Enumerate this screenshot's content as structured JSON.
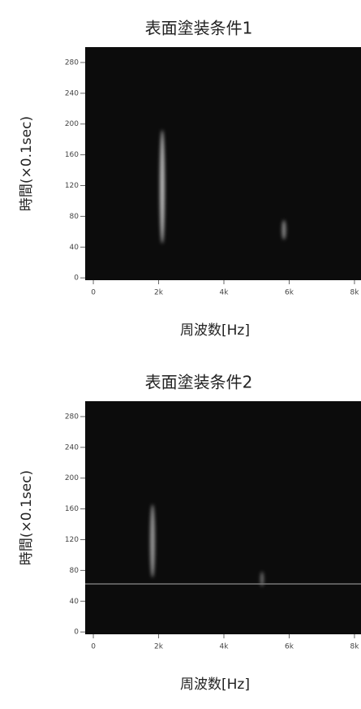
{
  "chart_data": [
    {
      "type": "spectrogram",
      "title": "表面塗装条件1",
      "xlabel": "周波数[Hz]",
      "ylabel": "時間(×0.1sec)",
      "xlim": [
        -250,
        8200
      ],
      "xticks": [
        0,
        {
          "value": 2000,
          "label": "2k"
        },
        {
          "value": 4000,
          "label": "4k"
        },
        {
          "value": 6000,
          "label": "6k"
        },
        {
          "value": 8000,
          "label": "8k"
        }
      ],
      "ylim": [
        -3,
        300
      ],
      "yticks": [
        0,
        40,
        80,
        120,
        160,
        200,
        240,
        280
      ],
      "color": "#0c0c0c"
    },
    {
      "type": "spectrogram",
      "title": "表面塗装条件2",
      "xlabel": "周波数[Hz]",
      "ylabel": "時間(×0.1sec)",
      "xlim": [
        -250,
        8200
      ],
      "xticks": [
        0,
        {
          "value": 2000,
          "label": "2k"
        },
        {
          "value": 4000,
          "label": "4k"
        },
        {
          "value": 6000,
          "label": "6k"
        },
        {
          "value": 8000,
          "label": "8k"
        }
      ],
      "ylim": [
        -3,
        300
      ],
      "yticks": [
        0,
        40,
        80,
        120,
        160,
        200,
        240,
        280
      ],
      "color": "#0c0c0c"
    }
  ]
}
